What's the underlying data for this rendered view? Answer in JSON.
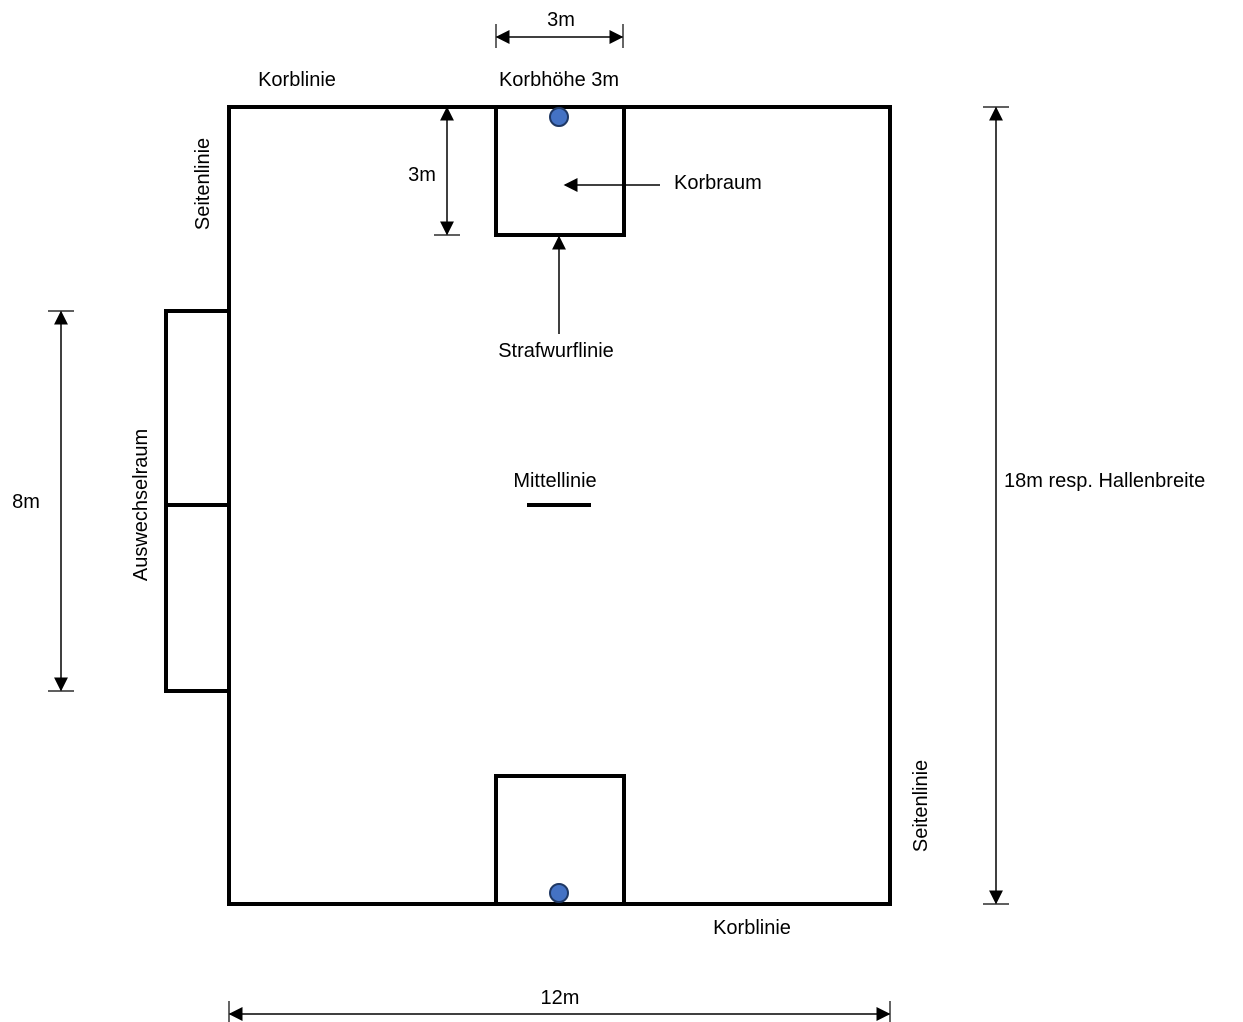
{
  "labels": {
    "top_width_dim": "3m",
    "korblinie_top": "Korblinie",
    "korbhoehe": "Korbhöhe 3m",
    "seitenlinie_left": "Seitenlinie",
    "depth_dim": "3m",
    "korbraum": "Korbraum",
    "strafwurflinie": "Strafwurflinie",
    "mittellinie": "Mittellinie",
    "auswechselraum": "Auswechselraum",
    "sub_zone_dim": "8m",
    "court_length_dim": "18m resp. Hallenbreite",
    "seitenlinie_right": "Seitenlinie",
    "korblinie_bottom": "Korblinie",
    "court_width_dim": "12m"
  },
  "colors": {
    "hoop_fill": "#4472c4",
    "line": "#000000"
  }
}
